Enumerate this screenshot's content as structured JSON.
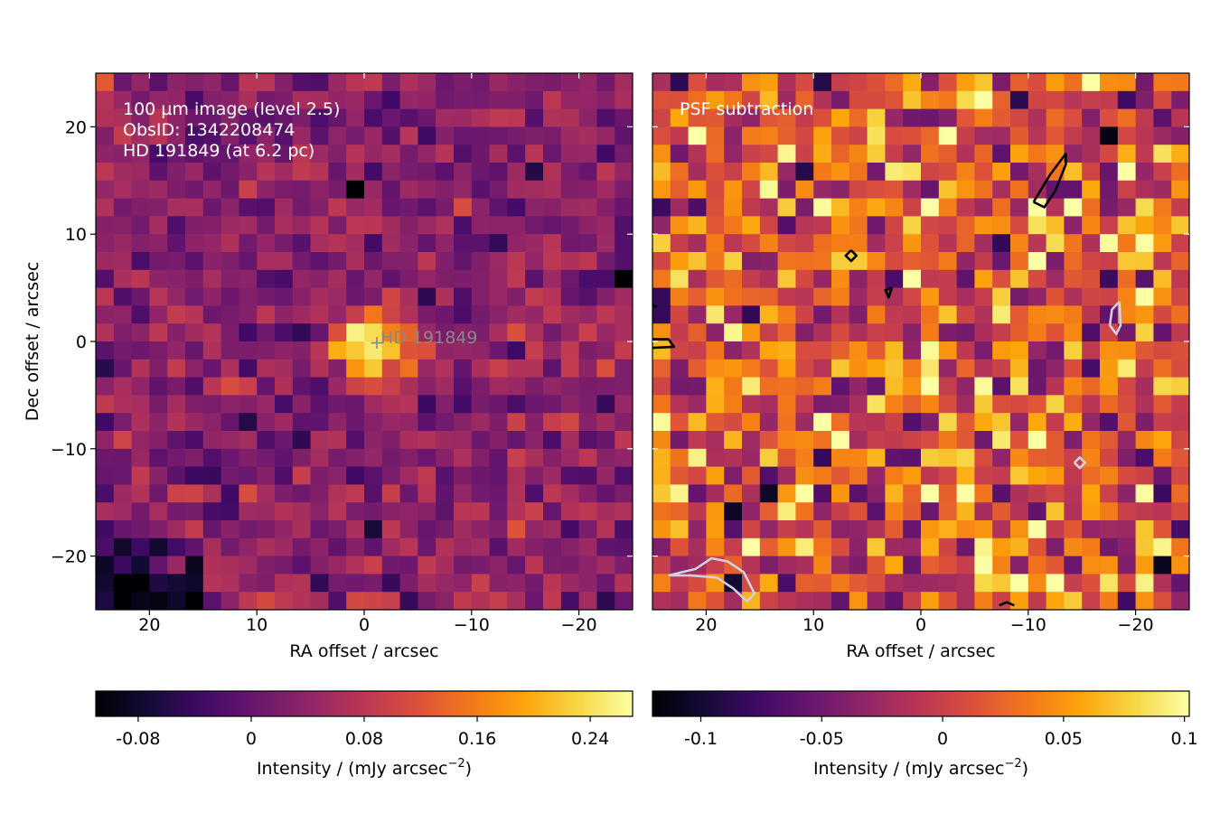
{
  "figure": {
    "panels": [
      {
        "annotation_lines": [
          "100 µm image (level 2.5)",
          "ObsID: 1342208474",
          "HD 191849 (at 6.2 pc)"
        ],
        "marker_label": "HD 191849",
        "xlabel": "RA offset / arcsec",
        "ylabel": "Dec offset / arcsec",
        "x_ticks": [
          "20",
          "10",
          "0",
          "−10",
          "−20"
        ],
        "y_ticks": [
          "20",
          "10",
          "0",
          "−10",
          "−20"
        ],
        "colorbar": {
          "label": "Intensity / (mJy arcsec",
          "label_sup": "−2",
          "label_end": ")",
          "ticks": [
            "-0.08",
            "0",
            "0.08",
            "0.16",
            "0.24"
          ]
        }
      },
      {
        "annotation_lines": [
          "PSF subtraction"
        ],
        "xlabel": "RA offset / arcsec",
        "x_ticks": [
          "20",
          "10",
          "0",
          "−10",
          "−20"
        ],
        "colorbar": {
          "label": "Intensity / (mJy arcsec",
          "label_sup": "−2",
          "label_end": ")",
          "ticks": [
            "-0.1",
            "-0.05",
            "0",
            "0.05",
            "0.1"
          ]
        }
      }
    ]
  },
  "chart_data": [
    {
      "type": "heatmap",
      "colormap": "inferno",
      "x_range": [
        25,
        -25
      ],
      "y_range": [
        -25,
        25
      ],
      "x_tick_values": [
        20,
        10,
        0,
        -10,
        -20
      ],
      "y_tick_values": [
        20,
        10,
        0,
        -10,
        -20
      ],
      "pixel_size_arcsec": 1.67,
      "vmin": -0.11,
      "vmax": 0.27,
      "colorbar_tick_values": [
        -0.08,
        0,
        0.08,
        0.16,
        0.24
      ],
      "source": {
        "x": -1,
        "y": -0.5,
        "label": "HD 191849",
        "peak": 0.26
      }
    },
    {
      "type": "heatmap",
      "colormap": "inferno",
      "x_range": [
        25,
        -25
      ],
      "y_range": [
        -25,
        25
      ],
      "pixel_size_arcsec": 1.67,
      "vmin": -0.12,
      "vmax": 0.102,
      "colorbar_tick_values": [
        -0.1,
        -0.05,
        0,
        0.05,
        0.1
      ],
      "contours": [
        {
          "color": "#000000",
          "points": [
            [
              -10.5,
              13
            ],
            [
              -12,
              15.5
            ],
            [
              -13.5,
              17.5
            ],
            [
              -13.5,
              16.5
            ],
            [
              -12.5,
              14
            ],
            [
              -11.5,
              12.5
            ],
            [
              -10.5,
              13
            ]
          ]
        },
        {
          "color": "#000000",
          "points": [
            [
              6.5,
              8.5
            ],
            [
              6,
              8
            ],
            [
              6.5,
              7.5
            ],
            [
              7,
              8
            ],
            [
              6.5,
              8.5
            ]
          ]
        },
        {
          "color": "#000000",
          "points": [
            [
              2.7,
              5
            ],
            [
              3.3,
              4.8
            ],
            [
              3,
              4.1
            ],
            [
              2.7,
              5
            ]
          ]
        },
        {
          "color": "#000000",
          "points": [
            [
              25,
              0.2
            ],
            [
              23.5,
              0.2
            ],
            [
              23,
              -0.5
            ],
            [
              25,
              -0.6
            ]
          ]
        },
        {
          "color": "#000000",
          "points": [
            [
              25,
              3.4
            ],
            [
              24.6,
              3.2
            ]
          ]
        },
        {
          "color": "#000000",
          "points": [
            [
              -8.7,
              -24.6
            ],
            [
              -8,
              -24.3
            ],
            [
              -7.3,
              -24.6
            ]
          ]
        },
        {
          "color": "#d0d0e0",
          "points": [
            [
              -18.5,
              3.7
            ],
            [
              -17.8,
              3
            ],
            [
              -17.6,
              1.5
            ],
            [
              -18.2,
              0.7
            ],
            [
              -18.6,
              1.5
            ],
            [
              -18.5,
              3.7
            ]
          ]
        },
        {
          "color": "#d0d0e0",
          "points": [
            [
              -14.3,
              -11.3
            ],
            [
              -14.8,
              -11.8
            ],
            [
              -15.3,
              -11.3
            ],
            [
              -14.8,
              -10.8
            ],
            [
              -14.3,
              -11.3
            ]
          ]
        },
        {
          "color": "#d0d0e0",
          "points": [
            [
              23.5,
              -21.8
            ],
            [
              21,
              -21.2
            ],
            [
              19.5,
              -20.2
            ],
            [
              18,
              -20.5
            ],
            [
              16.5,
              -21.5
            ],
            [
              15.5,
              -23.5
            ],
            [
              16.2,
              -24.2
            ],
            [
              17.5,
              -23
            ],
            [
              19,
              -22
            ],
            [
              21.5,
              -21.8
            ],
            [
              23.5,
              -21.8
            ]
          ]
        }
      ]
    }
  ]
}
